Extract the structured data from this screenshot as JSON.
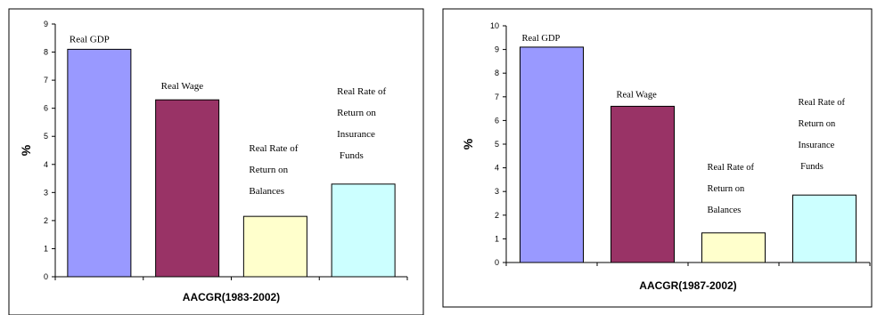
{
  "chart_data": [
    {
      "type": "bar",
      "categories": [
        "Real GDP",
        "Real Wage",
        "Real Rate of Return on Balances",
        "Real Rate of Return on Insurance Funds"
      ],
      "label_lines": [
        [
          "Real GDP"
        ],
        [
          "Real Wage"
        ],
        [
          "Real Rate of",
          "Return on",
          "Balances"
        ],
        [
          "Real Rate of",
          "Return on",
          "Insurance",
          " Funds"
        ]
      ],
      "values": [
        8.1,
        6.3,
        2.15,
        3.3
      ],
      "colors": [
        "#9999ff",
        "#993366",
        "#ffffcc",
        "#ccffff"
      ],
      "xlabel": "AACGR(1983-2002)",
      "ylabel": "%",
      "ylim": [
        0,
        9
      ],
      "yticks": [
        0,
        1,
        2,
        3,
        4,
        5,
        6,
        7,
        8,
        9
      ],
      "grid": false,
      "legend": "none"
    },
    {
      "type": "bar",
      "categories": [
        "Real GDP",
        "Real Wage",
        "Real Rate of Return on Balances",
        "Real Rate of Return on Insurance Funds"
      ],
      "label_lines": [
        [
          "Real GDP"
        ],
        [
          "Real Wage"
        ],
        [
          "Real Rate of",
          "Return on",
          "Balances"
        ],
        [
          "Real Rate of",
          "Return on",
          "Insurance",
          " Funds"
        ]
      ],
      "values": [
        9.1,
        6.6,
        1.25,
        2.85
      ],
      "colors": [
        "#9999ff",
        "#993366",
        "#ffffcc",
        "#ccffff"
      ],
      "xlabel": "AACGR(1987-2002)",
      "ylabel": "%",
      "ylim": [
        0,
        10
      ],
      "yticks": [
        0,
        1,
        2,
        3,
        4,
        5,
        6,
        7,
        8,
        9,
        10
      ],
      "grid": false,
      "legend": "none"
    }
  ]
}
